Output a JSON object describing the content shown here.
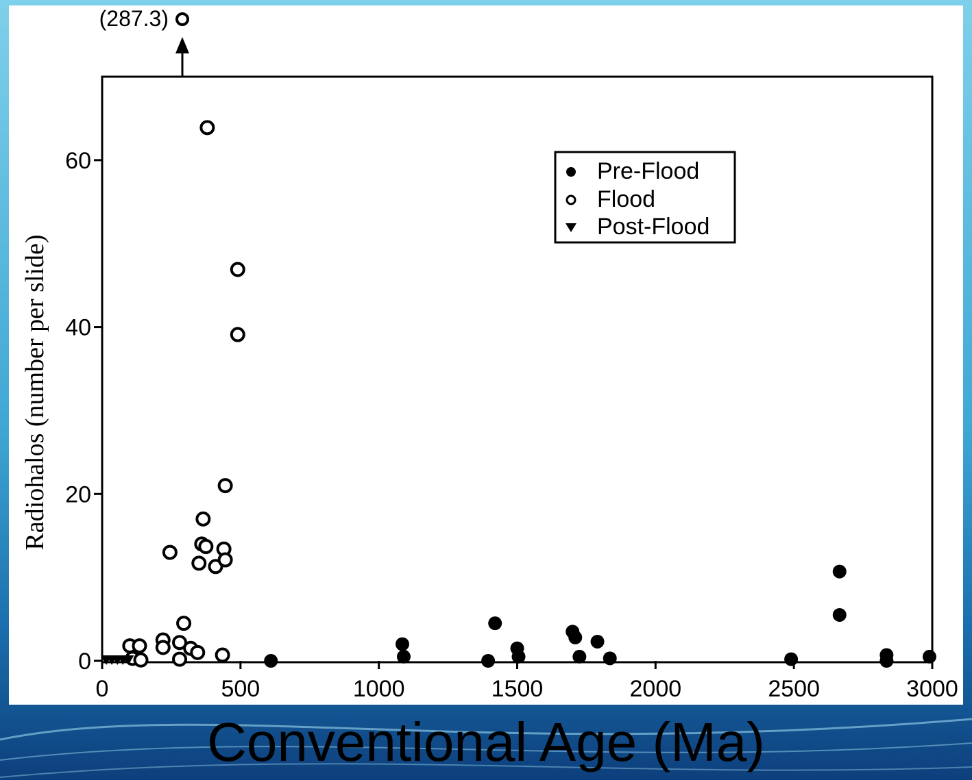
{
  "chart_data": {
    "type": "scatter",
    "title": "",
    "xlabel": "Conventional Age (Ma)",
    "ylabel": "Radiohalos (number per slide)",
    "xlim": [
      0,
      3000
    ],
    "ylim": [
      0,
      70
    ],
    "xticks": [
      "0",
      "500",
      "1000",
      "1500",
      "2000",
      "2500",
      "3000"
    ],
    "yticks": [
      "0",
      "20",
      "40",
      "60"
    ],
    "grid": false,
    "legend_position": "top-right",
    "colors": {
      "marker": "#000000",
      "panel": "#ffffff"
    },
    "annotation": {
      "label": "(287.3)",
      "x": 290,
      "y": 287.3,
      "note": "off-scale point"
    },
    "series": [
      {
        "name": "Pre-Flood",
        "marker": "filled-circle",
        "points": [
          [
            610,
            0
          ],
          [
            1085,
            2
          ],
          [
            1090,
            0.5
          ],
          [
            1395,
            0
          ],
          [
            1420,
            4.5
          ],
          [
            1500,
            1.5
          ],
          [
            1505,
            0.5
          ],
          [
            1700,
            3.5
          ],
          [
            1710,
            2.8
          ],
          [
            1725,
            0.5
          ],
          [
            1790,
            2.3
          ],
          [
            1835,
            0.3
          ],
          [
            2490,
            0.2
          ],
          [
            2665,
            10.7
          ],
          [
            2665,
            5.5
          ],
          [
            2835,
            0.7
          ],
          [
            2835,
            0
          ],
          [
            2990,
            0.5
          ]
        ]
      },
      {
        "name": "Flood",
        "marker": "open-circle",
        "points": [
          [
            380,
            63.9
          ],
          [
            490,
            46.9
          ],
          [
            490,
            39.1
          ],
          [
            445,
            21
          ],
          [
            365,
            17
          ],
          [
            245,
            13
          ],
          [
            360,
            14
          ],
          [
            375,
            13.7
          ],
          [
            440,
            13.4
          ],
          [
            350,
            11.7
          ],
          [
            410,
            11.3
          ],
          [
            445,
            12.1
          ],
          [
            295,
            4.5
          ],
          [
            100,
            1.8
          ],
          [
            135,
            1.8
          ],
          [
            220,
            2.5
          ],
          [
            220,
            1.6
          ],
          [
            280,
            2.2
          ],
          [
            320,
            1.5
          ],
          [
            345,
            1
          ],
          [
            110,
            0.3
          ],
          [
            140,
            0.1
          ],
          [
            280,
            0.2
          ],
          [
            435,
            0.7
          ]
        ]
      },
      {
        "name": "Post-Flood",
        "marker": "filled-triangle-down",
        "points": [
          [
            15,
            0
          ],
          [
            35,
            0
          ],
          [
            55,
            0
          ],
          [
            75,
            0
          ],
          [
            95,
            0
          ]
        ]
      }
    ]
  }
}
